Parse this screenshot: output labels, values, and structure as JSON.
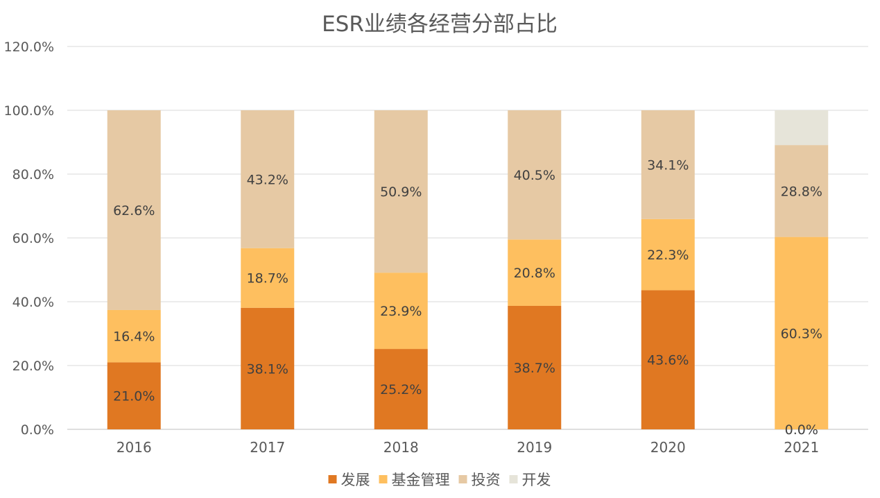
{
  "chart_data": {
    "type": "bar",
    "stacked": true,
    "title": "ESR业绩各经营分部占比",
    "xlabel": "",
    "ylabel": "",
    "categories": [
      "2016",
      "2017",
      "2018",
      "2019",
      "2020",
      "2021"
    ],
    "series": [
      {
        "name": "发展",
        "color": "#E07822",
        "values": [
          21.0,
          38.1,
          25.2,
          38.7,
          43.6,
          0.0
        ],
        "labels": [
          "21.0%",
          "38.1%",
          "25.2%",
          "38.7%",
          "43.6%",
          "0.0%"
        ]
      },
      {
        "name": "基金管理",
        "color": "#FEBF5F",
        "values": [
          16.4,
          18.7,
          23.9,
          20.8,
          22.3,
          60.3
        ],
        "labels": [
          "16.4%",
          "18.7%",
          "23.9%",
          "20.8%",
          "22.3%",
          "60.3%"
        ]
      },
      {
        "name": "投资",
        "color": "#E6C9A4",
        "values": [
          62.6,
          43.2,
          50.9,
          40.5,
          34.1,
          28.8
        ],
        "labels": [
          "62.6%",
          "43.2%",
          "50.9%",
          "40.5%",
          "34.1%",
          "28.8%"
        ]
      },
      {
        "name": "开发",
        "color": "#E6E4D9",
        "values": [
          0,
          0,
          0,
          0,
          0,
          10.9
        ],
        "labels": []
      }
    ],
    "ylim": [
      0,
      120
    ],
    "yticks": [
      "0.0%",
      "20.0%",
      "40.0%",
      "60.0%",
      "80.0%",
      "100.0%",
      "120.0%"
    ],
    "grid": true,
    "legend": "bottom"
  }
}
